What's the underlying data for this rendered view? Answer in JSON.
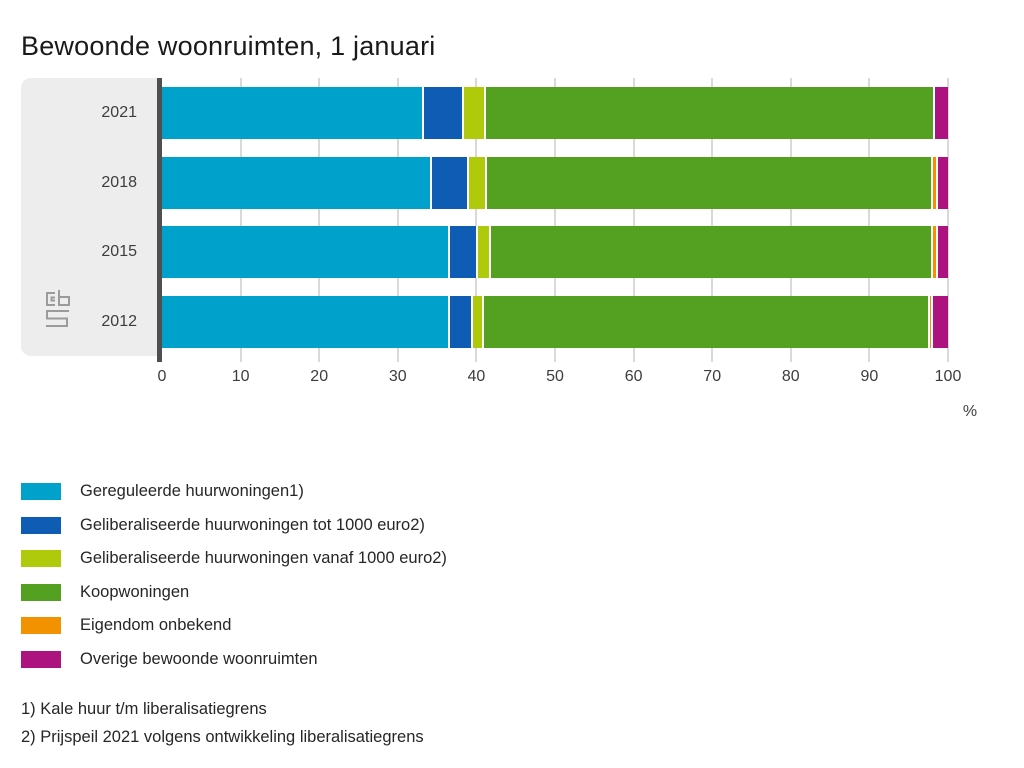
{
  "page": {
    "title": "Bewoonde woonruimten, 1 januari"
  },
  "axis": {
    "tick_labels": [
      "0",
      "10",
      "20",
      "30",
      "40",
      "50",
      "60",
      "70",
      "80",
      "90",
      "100"
    ],
    "unit": "%",
    "min": 0,
    "max": 100
  },
  "chart_data": {
    "type": "bar",
    "orientation": "horizontal",
    "stacked": true,
    "title": "Bewoonde woonruimten, 1 januari",
    "categories": [
      "2021",
      "2018",
      "2015",
      "2012"
    ],
    "series": [
      {
        "name": "Gereguleerde huurwoningen1)",
        "color": "#00a2cc",
        "values": [
          33.3,
          34.4,
          36.6,
          36.7
        ]
      },
      {
        "name": "Geliberaliseerde huurwoningen tot 1000 euro2)",
        "color": "#0f5cb4",
        "values": [
          5.1,
          4.7,
          3.6,
          2.9
        ]
      },
      {
        "name": "Geliberaliseerde huurwoningen vanaf 1000 euro2)",
        "color": "#afca0b",
        "values": [
          2.8,
          2.2,
          1.6,
          1.4
        ]
      },
      {
        "name": "Koopwoningen",
        "color": "#54a121",
        "values": [
          57.2,
          56.8,
          56.3,
          56.7
        ]
      },
      {
        "name": "Eigendom onbekend",
        "color": "#f39200",
        "values": [
          0.0,
          0.6,
          0.6,
          0.4
        ]
      },
      {
        "name": "Overige bewoonde woonruimten",
        "color": "#ad137f",
        "values": [
          1.6,
          1.3,
          1.3,
          1.9
        ]
      }
    ],
    "xlabel": "%",
    "ylabel": "",
    "xlim": [
      0,
      100
    ],
    "grid": true,
    "legend_position": "bottom-left"
  },
  "footnotes": [
    "1) Kale huur t/m liberalisatiegrens",
    "2) Prijspeil 2021 volgens ontwikkeling liberalisatiegrens"
  ],
  "icons": {
    "brand_logo": "cbs-logo"
  },
  "colors": {
    "panel_background": "#ededed",
    "axis_line": "#4f4f4f",
    "gridline": "#d9d9d9",
    "segment_separator": "#ffffff"
  }
}
